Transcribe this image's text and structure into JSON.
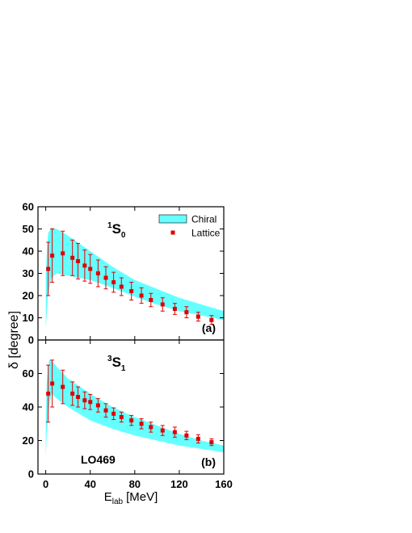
{
  "ylabel": "δ [degree]",
  "xlabel": {
    "main": "E",
    "sub": "lab",
    "rest": "[MeV]"
  },
  "chart_data": [
    {
      "type": "band_errorbar",
      "panel_label": "(a)",
      "state": {
        "sup": "1",
        "main": "S",
        "sub": "0"
      },
      "xlim": [
        -7,
        160
      ],
      "ylim": [
        0,
        60
      ],
      "xticks": [
        0,
        40,
        80,
        120,
        160
      ],
      "xtick_labels": false,
      "yticks": [
        0,
        10,
        20,
        30,
        40,
        50,
        60
      ],
      "legend": "upper right",
      "series": [
        {
          "name": "Chiral",
          "color": "#66ffff",
          "kind": "band",
          "x": [
            0,
            2,
            5,
            10,
            20,
            40,
            60,
            80,
            100,
            120,
            140,
            160
          ],
          "upper": [
            30,
            48,
            50.5,
            50,
            47,
            40,
            33,
            27,
            23,
            19,
            16,
            13
          ],
          "lower": [
            5,
            20,
            28,
            30,
            29,
            27,
            23.5,
            19.5,
            16,
            13,
            11,
            9
          ]
        },
        {
          "name": "Lattice",
          "color": "#e00000",
          "kind": "points",
          "x": [
            2.2,
            5.8,
            15.3,
            24,
            29,
            35,
            40,
            47,
            54,
            61,
            68,
            77,
            86,
            94.5,
            105,
            116,
            126.5,
            137,
            149
          ],
          "values": [
            32,
            38,
            39,
            37,
            35.5,
            33.5,
            32,
            30,
            28,
            26,
            24,
            22,
            20,
            18,
            16,
            14,
            12.5,
            10.5,
            9
          ],
          "errors": [
            12,
            12,
            10,
            8,
            8,
            7,
            6.5,
            6,
            5,
            4.5,
            4,
            4,
            3.5,
            3,
            3,
            2.5,
            2.5,
            2,
            2
          ]
        }
      ]
    },
    {
      "type": "band_errorbar",
      "panel_label": "(b)",
      "annotation": "LO469",
      "state": {
        "sup": "3",
        "main": "S",
        "sub": "1"
      },
      "xlim": [
        -7,
        160
      ],
      "ylim": [
        0,
        80
      ],
      "xticks": [
        0,
        40,
        80,
        120,
        160
      ],
      "xtick_labels": true,
      "yticks": [
        0,
        20,
        40,
        60
      ],
      "series": [
        {
          "color": "#66ffff",
          "kind": "band",
          "x": [
            0,
            1,
            3,
            5,
            10,
            20,
            40,
            60,
            80,
            100,
            120,
            140,
            160
          ],
          "upper": [
            30,
            55,
            68,
            68,
            64,
            57,
            48,
            40,
            34,
            29,
            24,
            20,
            17
          ],
          "lower": [
            10,
            25,
            40,
            48,
            45,
            40,
            32,
            27,
            23,
            20,
            17,
            15,
            13
          ]
        },
        {
          "color": "#e00000",
          "kind": "points",
          "x": [
            2.2,
            5.8,
            15.3,
            24,
            29,
            35,
            40,
            47,
            54,
            61,
            68,
            77,
            86,
            94.5,
            105,
            116,
            126.5,
            137,
            149
          ],
          "values": [
            48,
            54,
            52,
            48,
            46,
            44,
            43,
            41,
            38,
            36,
            34,
            32,
            30,
            28,
            26,
            25,
            23,
            21,
            19
          ],
          "errors": [
            17,
            14,
            10,
            7,
            6,
            5,
            4.5,
            4,
            4,
            3.5,
            3,
            3,
            3,
            3,
            3,
            3,
            2.5,
            2.5,
            2
          ]
        }
      ]
    }
  ]
}
